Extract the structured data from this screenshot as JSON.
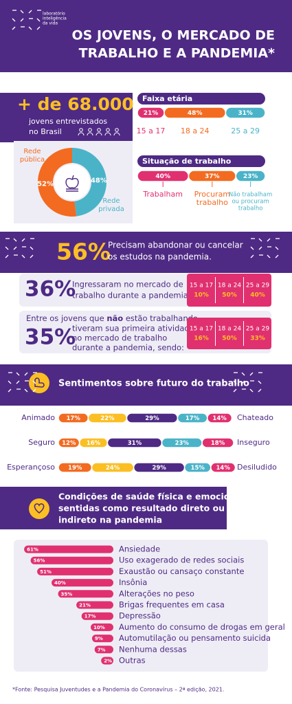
{
  "header": {
    "logo_lines": [
      "laboratório",
      "inteligência",
      "da vida"
    ],
    "title_lines": [
      "OS JOVENS, O MERCADO DE",
      "TRABALHO E A PANDEMIA*"
    ]
  },
  "respondents": {
    "count": "+ de 68.000",
    "caption_lines": [
      "jovens entrevistados",
      "no Brasil"
    ]
  },
  "school": {
    "segments": [
      {
        "label_lines": [
          "Rede",
          "pública"
        ],
        "value": "52%",
        "color": "#f26b21"
      },
      {
        "label_lines": [
          "Rede",
          "privada"
        ],
        "value": "48%",
        "color": "#4bb3c8"
      }
    ]
  },
  "age": {
    "title": "Faixa etária",
    "segments": [
      {
        "value": "21%",
        "label_lines": [
          "15 a 17"
        ],
        "color": "#e0306f"
      },
      {
        "value": "48%",
        "label_lines": [
          "18 a 24"
        ],
        "color": "#f26b21"
      },
      {
        "value": "31%",
        "label_lines": [
          "25 a 29"
        ],
        "color": "#4bb3c8"
      }
    ]
  },
  "work": {
    "title": "Situação de trabalho",
    "segments": [
      {
        "value": "40%",
        "label_lines": [
          "Trabalham"
        ],
        "color": "#e0306f"
      },
      {
        "value": "37%",
        "label_lines": [
          "Procuram",
          "trabalho"
        ],
        "color": "#f26b21"
      },
      {
        "value": "23%",
        "label_lines": [
          "Não trabalham",
          "ou procuram",
          "trabalho"
        ],
        "color": "#4bb3c8"
      }
    ]
  },
  "dropout": {
    "value": "56%",
    "text_lines": [
      "Precisam abandonar ou cancelar",
      "os estudos na pandemia."
    ]
  },
  "entered": {
    "value": "36%",
    "text_lines": [
      "Ingressaram no mercado de",
      "trabalho durante a pandemia:"
    ],
    "columns": [
      {
        "age": "15 a 17",
        "value": "10%"
      },
      {
        "age": "18 a 24",
        "value": "50%"
      },
      {
        "age": "25 a 29",
        "value": "40%"
      }
    ]
  },
  "first_job": {
    "lead": [
      "Entre os jovens que ",
      "não",
      " estão trabalhando"
    ],
    "value": "35%",
    "text_lines": [
      "tiveram sua primeira atividade",
      "no mercado de trabalho",
      "durante a pandemia, sendo:"
    ],
    "columns": [
      {
        "age": "15 a 17",
        "value": "16%"
      },
      {
        "age": "18 a 24",
        "value": "50%"
      },
      {
        "age": "25 a 29",
        "value": "33%"
      }
    ]
  },
  "feelings": {
    "title": "Sentimentos sobre futuro do trabalho",
    "colors": [
      "#f26b21",
      "#fbbf24",
      "#4e2a84",
      "#4bb3c8",
      "#e0306f"
    ],
    "rows": [
      {
        "left": "Animado",
        "right": "Chateado",
        "values": [
          "17%",
          "22%",
          "29%",
          "17%",
          "14%"
        ]
      },
      {
        "left": "Seguro",
        "right": "Inseguro",
        "values": [
          "12%",
          "16%",
          "31%",
          "23%",
          "18%"
        ]
      },
      {
        "left": "Esperançoso",
        "right": "Desiludido",
        "values": [
          "19%",
          "24%",
          "29%",
          "15%",
          "14%"
        ]
      }
    ]
  },
  "health": {
    "title_lines": [
      "Condições de saúde física e emocional",
      "sentidas como resultado direto ou",
      "indireto na pandemia"
    ],
    "items": [
      {
        "value": "61%",
        "label": "Ansiedade"
      },
      {
        "value": "56%",
        "label": "Uso exagerado de redes sociais"
      },
      {
        "value": "51%",
        "label": "Exaustão ou cansaço constante"
      },
      {
        "value": "40%",
        "label": "Insônia"
      },
      {
        "value": "35%",
        "label": "Alterações no peso"
      },
      {
        "value": "21%",
        "label": "Brigas frequentes em casa"
      },
      {
        "value": "17%",
        "label": "Depressão"
      },
      {
        "value": "10%",
        "label": "Aumento do consumo de drogas em geral"
      },
      {
        "value": "9%",
        "label": "Automutilação ou pensamento suicida"
      },
      {
        "value": "7%",
        "label": "Nenhuma dessas"
      },
      {
        "value": "2%",
        "label": "Outras"
      }
    ]
  },
  "footnote": "*Fonte: Pesquisa Juventudes e a Pandemia do Coronavírus – 2ª edição, 2021."
}
